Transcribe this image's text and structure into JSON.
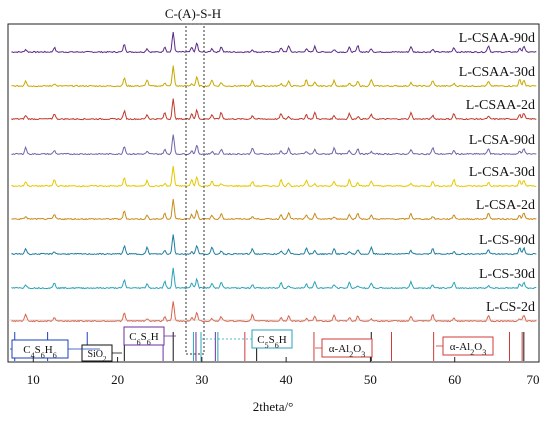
{
  "chart_data": {
    "type": "line",
    "title": "",
    "xlabel": "2theta/°",
    "ylabel": "",
    "xlim": [
      7,
      70
    ],
    "xticks": [
      10,
      20,
      30,
      40,
      50,
      60,
      70
    ],
    "grid": false,
    "legend": "none",
    "top_annotation": "C-(A)-S-H",
    "series": [
      {
        "name": "L-CSAA-90d",
        "color": "#5b2a8a"
      },
      {
        "name": "L-CSAA-30d",
        "color": "#c9a800"
      },
      {
        "name": "L-CSAA-2d",
        "color": "#c0392b"
      },
      {
        "name": "L-CSA-90d",
        "color": "#6a66a8"
      },
      {
        "name": "L-CSA-30d",
        "color": "#e6c800"
      },
      {
        "name": "L-CSA-2d",
        "color": "#c98a1a"
      },
      {
        "name": "L-CS-90d",
        "color": "#1f7ea0"
      },
      {
        "name": "L-CS-30d",
        "color": "#2aa3b8"
      },
      {
        "name": "L-CS-2d",
        "color": "#d9634a"
      }
    ],
    "peaks_2theta": [
      9.1,
      12.5,
      20.8,
      23.5,
      25.6,
      26.6,
      28.8,
      29.4,
      31.2,
      32.3,
      36.0,
      39.4,
      40.3,
      42.4,
      43.4,
      45.7,
      47.5,
      48.5,
      50.1,
      54.8,
      57.4,
      59.9,
      64.0,
      67.7,
      68.2
    ],
    "reference_phases": [
      {
        "label": "C4S6H6",
        "color": "#1a3fbf",
        "lines": [
          7.8,
          11.7,
          16.4
        ]
      },
      {
        "label": "SiO2",
        "color": "#111111",
        "lines": [
          20.8,
          26.6,
          36.5,
          50.1,
          68.2
        ]
      },
      {
        "label": "C6S6H",
        "color": "#6b2fa0",
        "lines": [
          25.4,
          29.3,
          31.6
        ]
      },
      {
        "label": "C5S6H",
        "color": "#2aa3b8",
        "lines": [
          29.0,
          29.9,
          31.9
        ]
      },
      {
        "label": "α-Al2O3",
        "color": "#d03a3a",
        "lines": [
          35.1,
          43.3,
          52.5
        ]
      },
      {
        "label": "α-Al2O3",
        "color": "#d03a3a",
        "lines": [
          57.5,
          66.5,
          68.0
        ]
      }
    ]
  }
}
